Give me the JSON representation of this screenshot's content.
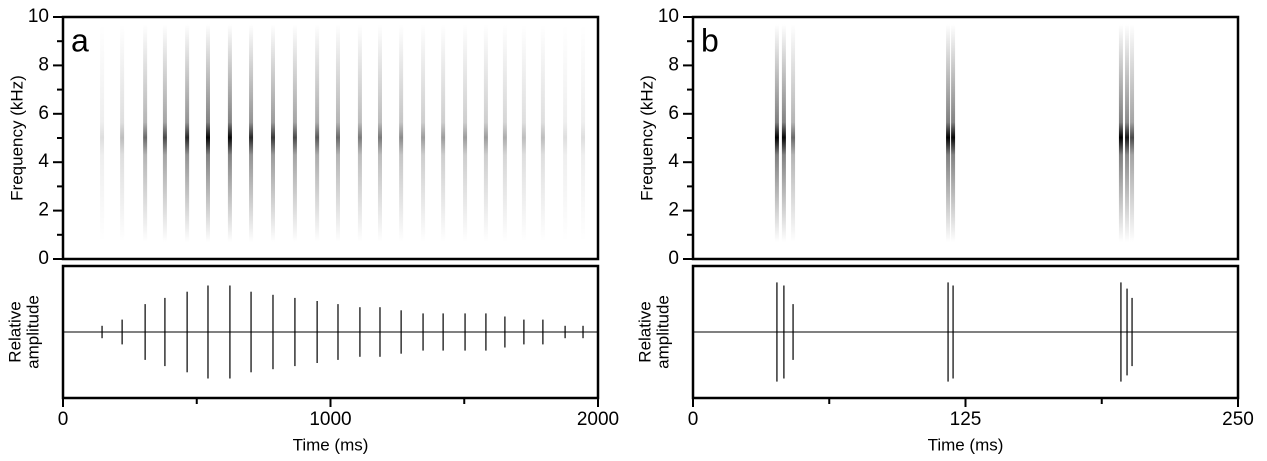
{
  "chart_data": [
    {
      "type": "spectrogram",
      "panel_label": "a",
      "ylabel": "Frequency (kHz)",
      "amplitude_label": [
        "Relative",
        "amplitude"
      ],
      "xlabel": "Time (ms)",
      "xlim": [
        0,
        2000
      ],
      "xticks": [
        0,
        1000,
        2000
      ],
      "x_minor_ticks": [
        500,
        1500
      ],
      "ylim": [
        0,
        10
      ],
      "yticks": [
        0,
        2,
        4,
        6,
        8,
        10
      ],
      "y_minor_ticks": [
        1,
        3,
        5,
        7,
        9
      ],
      "peak_frequency": 5.2,
      "color": "#000000",
      "x": [
        146,
        221,
        307,
        381,
        464,
        542,
        624,
        703,
        785,
        867,
        950,
        1028,
        1110,
        1185,
        1264,
        1346,
        1421,
        1503,
        1581,
        1652,
        1723,
        1794,
        1877,
        1944
      ],
      "values": [
        0.1,
        0.2,
        0.45,
        0.55,
        0.65,
        0.75,
        0.75,
        0.65,
        0.6,
        0.55,
        0.5,
        0.45,
        0.4,
        0.4,
        0.35,
        0.3,
        0.3,
        0.3,
        0.3,
        0.25,
        0.2,
        0.2,
        0.1,
        0.1
      ]
    },
    {
      "type": "spectrogram",
      "panel_label": "b",
      "ylabel": "Frequency (kHz)",
      "amplitude_label": [
        "Relative",
        "amplitude"
      ],
      "xlabel": "Time (ms)",
      "xlim": [
        0,
        250
      ],
      "xticks": [
        0,
        125,
        250
      ],
      "x_minor_ticks": [
        62.5,
        187.5
      ],
      "ylim": [
        0,
        10
      ],
      "yticks": [
        0,
        2,
        4,
        6,
        8,
        10
      ],
      "y_minor_ticks": [
        1,
        3,
        5,
        7,
        9
      ],
      "peak_frequency": 5.2,
      "color": "#000000",
      "x": [
        38.5,
        41.7,
        45.9,
        117,
        119.3,
        196.3,
        199.1,
        201.4
      ],
      "values": [
        0.8,
        0.75,
        0.45,
        0.8,
        0.75,
        0.8,
        0.7,
        0.55
      ]
    }
  ]
}
